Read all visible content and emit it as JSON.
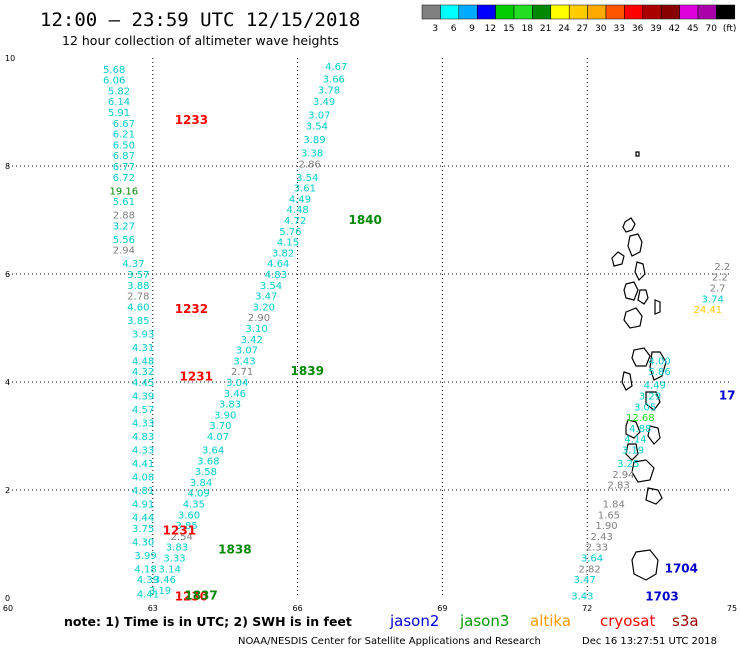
{
  "header": {
    "title": "12:00  –  23:59  UTC  12/15/2018",
    "subtitle": "12 hour collection of altimeter wave heights"
  },
  "colorbar": {
    "colors": [
      "#808080",
      "#00ffff",
      "#00aaff",
      "#0000ff",
      "#00cc00",
      "#22dd22",
      "#008800",
      "#ffff00",
      "#ffcc00",
      "#ffaa00",
      "#ff5500",
      "#ff0000",
      "#aa0000",
      "#880000",
      "#dd00dd",
      "#aa00aa",
      "#000000"
    ],
    "labels": [
      "3",
      "6",
      "9",
      "12",
      "15",
      "18",
      "21",
      "24",
      "27",
      "30",
      "33",
      "36",
      "39",
      "42",
      "45",
      "70",
      "(ft)"
    ]
  },
  "chart_data": {
    "type": "scatter",
    "xlim": [
      60,
      75
    ],
    "ylim": [
      0,
      10
    ],
    "x_ticks": [
      "60",
      "63",
      "66",
      "69",
      "72",
      "75"
    ],
    "y_ticks": [
      "0",
      "2",
      "4",
      "6",
      "8",
      "10"
    ],
    "grid": true,
    "wave_heights": [
      {
        "t": "5.68",
        "x": 62.2,
        "y": 9.8,
        "c": "#00cccc"
      },
      {
        "t": "6.06",
        "x": 62.2,
        "y": 9.6,
        "c": "#00cccc"
      },
      {
        "t": "5.82",
        "x": 62.3,
        "y": 9.4,
        "c": "#00cccc"
      },
      {
        "t": "6.14",
        "x": 62.3,
        "y": 9.2,
        "c": "#00cccc"
      },
      {
        "t": "5.91",
        "x": 62.3,
        "y": 9.0,
        "c": "#00cccc"
      },
      {
        "t": "6.67",
        "x": 62.4,
        "y": 8.8,
        "c": "#00cccc"
      },
      {
        "t": "6.21",
        "x": 62.4,
        "y": 8.6,
        "c": "#00cccc"
      },
      {
        "t": "6.50",
        "x": 62.4,
        "y": 8.4,
        "c": "#00cccc"
      },
      {
        "t": "6.87",
        "x": 62.4,
        "y": 8.2,
        "c": "#00cccc"
      },
      {
        "t": "6.77",
        "x": 62.4,
        "y": 8.0,
        "c": "#00cccc"
      },
      {
        "t": "6.72",
        "x": 62.4,
        "y": 7.8,
        "c": "#00cccc"
      },
      {
        "t": "19.16",
        "x": 62.4,
        "y": 7.55,
        "c": "#008800"
      },
      {
        "t": "5.61",
        "x": 62.4,
        "y": 7.35,
        "c": "#00cccc"
      },
      {
        "t": "2.88",
        "x": 62.4,
        "y": 7.1,
        "c": "#808080"
      },
      {
        "t": "3.27",
        "x": 62.4,
        "y": 6.9,
        "c": "#00cccc"
      },
      {
        "t": "5.56",
        "x": 62.4,
        "y": 6.65,
        "c": "#00cccc"
      },
      {
        "t": "2.94",
        "x": 62.4,
        "y": 6.45,
        "c": "#808080"
      },
      {
        "t": "4.37",
        "x": 62.6,
        "y": 6.2,
        "c": "#00cccc"
      },
      {
        "t": "3.57",
        "x": 62.7,
        "y": 6.0,
        "c": "#00cccc"
      },
      {
        "t": "3.88",
        "x": 62.7,
        "y": 5.8,
        "c": "#00cccc"
      },
      {
        "t": "2.78",
        "x": 62.7,
        "y": 5.6,
        "c": "#808080"
      },
      {
        "t": "4.60",
        "x": 62.7,
        "y": 5.4,
        "c": "#00cccc"
      },
      {
        "t": "3.85",
        "x": 62.7,
        "y": 5.15,
        "c": "#00cccc"
      },
      {
        "t": "3.93",
        "x": 62.8,
        "y": 4.9,
        "c": "#00cccc"
      },
      {
        "t": "4.31",
        "x": 62.8,
        "y": 4.65,
        "c": "#00cccc"
      },
      {
        "t": "4.48",
        "x": 62.8,
        "y": 4.4,
        "c": "#00cccc"
      },
      {
        "t": "4.32",
        "x": 62.8,
        "y": 4.2,
        "c": "#00cccc"
      },
      {
        "t": "4.45",
        "x": 62.8,
        "y": 4.0,
        "c": "#00cccc"
      },
      {
        "t": "4.39",
        "x": 62.8,
        "y": 3.75,
        "c": "#00cccc"
      },
      {
        "t": "4.57",
        "x": 62.8,
        "y": 3.5,
        "c": "#00cccc"
      },
      {
        "t": "4.33",
        "x": 62.8,
        "y": 3.25,
        "c": "#00cccc"
      },
      {
        "t": "4.83",
        "x": 62.8,
        "y": 3.0,
        "c": "#00cccc"
      },
      {
        "t": "4.33",
        "x": 62.8,
        "y": 2.75,
        "c": "#00cccc"
      },
      {
        "t": "4.41",
        "x": 62.8,
        "y": 2.5,
        "c": "#00cccc"
      },
      {
        "t": "4.08",
        "x": 62.8,
        "y": 2.25,
        "c": "#00cccc"
      },
      {
        "t": "4.81",
        "x": 62.8,
        "y": 2.0,
        "c": "#00cccc"
      },
      {
        "t": "4.91",
        "x": 62.8,
        "y": 1.75,
        "c": "#00cccc"
      },
      {
        "t": "4.44",
        "x": 62.8,
        "y": 1.5,
        "c": "#00cccc"
      },
      {
        "t": "3.75",
        "x": 62.8,
        "y": 1.3,
        "c": "#00cccc"
      },
      {
        "t": "4.30",
        "x": 62.8,
        "y": 1.05,
        "c": "#00cccc"
      },
      {
        "t": "3.99",
        "x": 62.85,
        "y": 0.8,
        "c": "#00cccc"
      },
      {
        "t": "4.18",
        "x": 62.85,
        "y": 0.55,
        "c": "#00cccc"
      },
      {
        "t": "4.39",
        "x": 62.9,
        "y": 0.35,
        "c": "#00cccc"
      },
      {
        "t": "4.41",
        "x": 62.9,
        "y": 0.08,
        "c": "#00cccc"
      },
      {
        "t": "4.67",
        "x": 66.8,
        "y": 9.85,
        "c": "#00cccc"
      },
      {
        "t": "3.66",
        "x": 66.75,
        "y": 9.62,
        "c": "#00cccc"
      },
      {
        "t": "3.78",
        "x": 66.65,
        "y": 9.42,
        "c": "#00cccc"
      },
      {
        "t": "3.49",
        "x": 66.55,
        "y": 9.2,
        "c": "#00cccc"
      },
      {
        "t": "3.07",
        "x": 66.45,
        "y": 8.95,
        "c": "#00cccc"
      },
      {
        "t": "3.54",
        "x": 66.4,
        "y": 8.75,
        "c": "#00cccc"
      },
      {
        "t": "3.89",
        "x": 66.35,
        "y": 8.5,
        "c": "#00cccc"
      },
      {
        "t": "3.38",
        "x": 66.3,
        "y": 8.25,
        "c": "#00cccc"
      },
      {
        "t": "2.86",
        "x": 66.25,
        "y": 8.05,
        "c": "#808080"
      },
      {
        "t": "3.54",
        "x": 66.2,
        "y": 7.8,
        "c": "#00cccc"
      },
      {
        "t": "3.61",
        "x": 66.15,
        "y": 7.6,
        "c": "#00cccc"
      },
      {
        "t": "4.49",
        "x": 66.05,
        "y": 7.4,
        "c": "#00cccc"
      },
      {
        "t": "4.48",
        "x": 66.0,
        "y": 7.2,
        "c": "#00cccc"
      },
      {
        "t": "4.72",
        "x": 65.95,
        "y": 7.0,
        "c": "#00cccc"
      },
      {
        "t": "5.76",
        "x": 65.85,
        "y": 6.8,
        "c": "#00cccc"
      },
      {
        "t": "4.15",
        "x": 65.8,
        "y": 6.6,
        "c": "#00cccc"
      },
      {
        "t": "3.82",
        "x": 65.7,
        "y": 6.4,
        "c": "#00cccc"
      },
      {
        "t": "4.64",
        "x": 65.6,
        "y": 6.2,
        "c": "#00cccc"
      },
      {
        "t": "4.83",
        "x": 65.55,
        "y": 6.0,
        "c": "#00cccc"
      },
      {
        "t": "3.54",
        "x": 65.45,
        "y": 5.8,
        "c": "#00cccc"
      },
      {
        "t": "3.47",
        "x": 65.35,
        "y": 5.6,
        "c": "#00cccc"
      },
      {
        "t": "3.20",
        "x": 65.3,
        "y": 5.4,
        "c": "#00cccc"
      },
      {
        "t": "2.90",
        "x": 65.2,
        "y": 5.2,
        "c": "#808080"
      },
      {
        "t": "3.10",
        "x": 65.15,
        "y": 5.0,
        "c": "#00cccc"
      },
      {
        "t": "3.42",
        "x": 65.05,
        "y": 4.8,
        "c": "#00cccc"
      },
      {
        "t": "3.07",
        "x": 64.95,
        "y": 4.6,
        "c": "#00cccc"
      },
      {
        "t": "3.43",
        "x": 64.9,
        "y": 4.4,
        "c": "#00cccc"
      },
      {
        "t": "2.71",
        "x": 64.85,
        "y": 4.2,
        "c": "#808080"
      },
      {
        "t": "3.04",
        "x": 64.75,
        "y": 4.0,
        "c": "#00cccc"
      },
      {
        "t": "3.46",
        "x": 64.7,
        "y": 3.8,
        "c": "#00cccc"
      },
      {
        "t": "3.83",
        "x": 64.6,
        "y": 3.6,
        "c": "#00cccc"
      },
      {
        "t": "3.90",
        "x": 64.5,
        "y": 3.4,
        "c": "#00cccc"
      },
      {
        "t": "3.70",
        "x": 64.4,
        "y": 3.2,
        "c": "#00cccc"
      },
      {
        "t": "4.07",
        "x": 64.35,
        "y": 3.0,
        "c": "#00cccc"
      },
      {
        "t": "3.64",
        "x": 64.25,
        "y": 2.75,
        "c": "#00cccc"
      },
      {
        "t": "3.68",
        "x": 64.15,
        "y": 2.55,
        "c": "#00cccc"
      },
      {
        "t": "3.58",
        "x": 64.1,
        "y": 2.35,
        "c": "#00cccc"
      },
      {
        "t": "3.84",
        "x": 64.0,
        "y": 2.15,
        "c": "#00cccc"
      },
      {
        "t": "4.09",
        "x": 63.95,
        "y": 1.95,
        "c": "#00cccc"
      },
      {
        "t": "4.35",
        "x": 63.85,
        "y": 1.75,
        "c": "#00cccc"
      },
      {
        "t": "3.60",
        "x": 63.75,
        "y": 1.55,
        "c": "#00cccc"
      },
      {
        "t": "3.85",
        "x": 63.7,
        "y": 1.35,
        "c": "#00cccc"
      },
      {
        "t": "2.54",
        "x": 63.6,
        "y": 1.15,
        "c": "#808080"
      },
      {
        "t": "3.83",
        "x": 63.5,
        "y": 0.95,
        "c": "#00cccc"
      },
      {
        "t": "3.33",
        "x": 63.45,
        "y": 0.75,
        "c": "#00cccc"
      },
      {
        "t": "3.14",
        "x": 63.35,
        "y": 0.55,
        "c": "#00cccc"
      },
      {
        "t": "3.46",
        "x": 63.25,
        "y": 0.35,
        "c": "#00cccc"
      },
      {
        "t": "3.19",
        "x": 63.15,
        "y": 0.15,
        "c": "#00cccc"
      },
      {
        "t": "4.00",
        "x": 73.5,
        "y": 4.4,
        "c": "#00cccc"
      },
      {
        "t": "5.86",
        "x": 73.5,
        "y": 4.2,
        "c": "#00cccc"
      },
      {
        "t": "4.49",
        "x": 73.4,
        "y": 3.95,
        "c": "#00cccc"
      },
      {
        "t": "3.29",
        "x": 73.3,
        "y": 3.75,
        "c": "#00cccc"
      },
      {
        "t": "3.05",
        "x": 73.2,
        "y": 3.55,
        "c": "#00cccc"
      },
      {
        "t": "12.68",
        "x": 73.1,
        "y": 3.35,
        "c": "#22dd22"
      },
      {
        "t": "4.88",
        "x": 73.1,
        "y": 3.15,
        "c": "#00cccc"
      },
      {
        "t": "4.14",
        "x": 73.0,
        "y": 2.95,
        "c": "#00cccc"
      },
      {
        "t": "3.19",
        "x": 72.95,
        "y": 2.75,
        "c": "#00cccc"
      },
      {
        "t": "3.25",
        "x": 72.85,
        "y": 2.5,
        "c": "#00cccc"
      },
      {
        "t": "2.94",
        "x": 72.75,
        "y": 2.3,
        "c": "#808080"
      },
      {
        "t": "2.83",
        "x": 72.65,
        "y": 2.1,
        "c": "#808080"
      },
      {
        "t": "1.84",
        "x": 72.55,
        "y": 1.75,
        "c": "#808080"
      },
      {
        "t": "1.65",
        "x": 72.45,
        "y": 1.55,
        "c": "#808080"
      },
      {
        "t": "1.90",
        "x": 72.4,
        "y": 1.35,
        "c": "#808080"
      },
      {
        "t": "2.43",
        "x": 72.3,
        "y": 1.15,
        "c": "#808080"
      },
      {
        "t": "2.33",
        "x": 72.2,
        "y": 0.95,
        "c": "#808080"
      },
      {
        "t": "3.64",
        "x": 72.1,
        "y": 0.75,
        "c": "#00cccc"
      },
      {
        "t": "2.82",
        "x": 72.05,
        "y": 0.55,
        "c": "#808080"
      },
      {
        "t": "3.47",
        "x": 71.95,
        "y": 0.35,
        "c": "#00cccc"
      },
      {
        "t": "3.43",
        "x": 71.9,
        "y": 0.05,
        "c": "#00cccc"
      },
      {
        "t": "3.74",
        "x": 74.6,
        "y": 5.55,
        "c": "#00cccc"
      },
      {
        "t": "24.41",
        "x": 74.5,
        "y": 5.35,
        "c": "#ffcc00"
      },
      {
        "t": "2.7",
        "x": 74.7,
        "y": 5.75,
        "c": "#808080"
      },
      {
        "t": "2.2",
        "x": 74.75,
        "y": 5.95,
        "c": "#808080"
      },
      {
        "t": "2.2",
        "x": 74.8,
        "y": 6.15,
        "c": "#808080"
      }
    ],
    "pass_labels": [
      {
        "t": "1233",
        "x": 63.8,
        "y": 8.85,
        "c": "#ff0000"
      },
      {
        "t": "1232",
        "x": 63.8,
        "y": 5.35,
        "c": "#ff0000"
      },
      {
        "t": "1231",
        "x": 63.9,
        "y": 4.1,
        "c": "#ff0000"
      },
      {
        "t": "1231",
        "x": 63.55,
        "y": 1.25,
        "c": "#ff0000"
      },
      {
        "t": "1230",
        "x": 63.8,
        "y": 0.03,
        "c": "#ff0000"
      },
      {
        "t": "1840",
        "x": 67.4,
        "y": 7.0,
        "c": "#008800"
      },
      {
        "t": "1839",
        "x": 66.2,
        "y": 4.2,
        "c": "#008800"
      },
      {
        "t": "1838",
        "x": 64.7,
        "y": 0.9,
        "c": "#008800"
      },
      {
        "t": "1837",
        "x": 64.0,
        "y": 0.05,
        "c": "#008800"
      },
      {
        "t": "1704",
        "x": 73.95,
        "y": 0.55,
        "c": "#0000cc"
      },
      {
        "t": "1703",
        "x": 73.55,
        "y": 0.03,
        "c": "#0000cc"
      },
      {
        "t": "17",
        "x": 74.9,
        "y": 3.75,
        "c": "#0000cc"
      }
    ]
  },
  "footer": {
    "note": "note:  1) Time is in UTC;  2) SWH is in feet",
    "satellites": [
      {
        "name": "jason2",
        "color": "#0000dd"
      },
      {
        "name": "jason3",
        "color": "#009900"
      },
      {
        "name": "altika",
        "color": "#ff9900"
      },
      {
        "name": "cryosat",
        "color": "#ff0000"
      },
      {
        "name": "s3a",
        "color": "#990000"
      }
    ],
    "credit": "NOAA/NESDIS Center for Satellite Applications and Research",
    "timestamp": "Dec 16 13:27:51 UTC 2018"
  }
}
